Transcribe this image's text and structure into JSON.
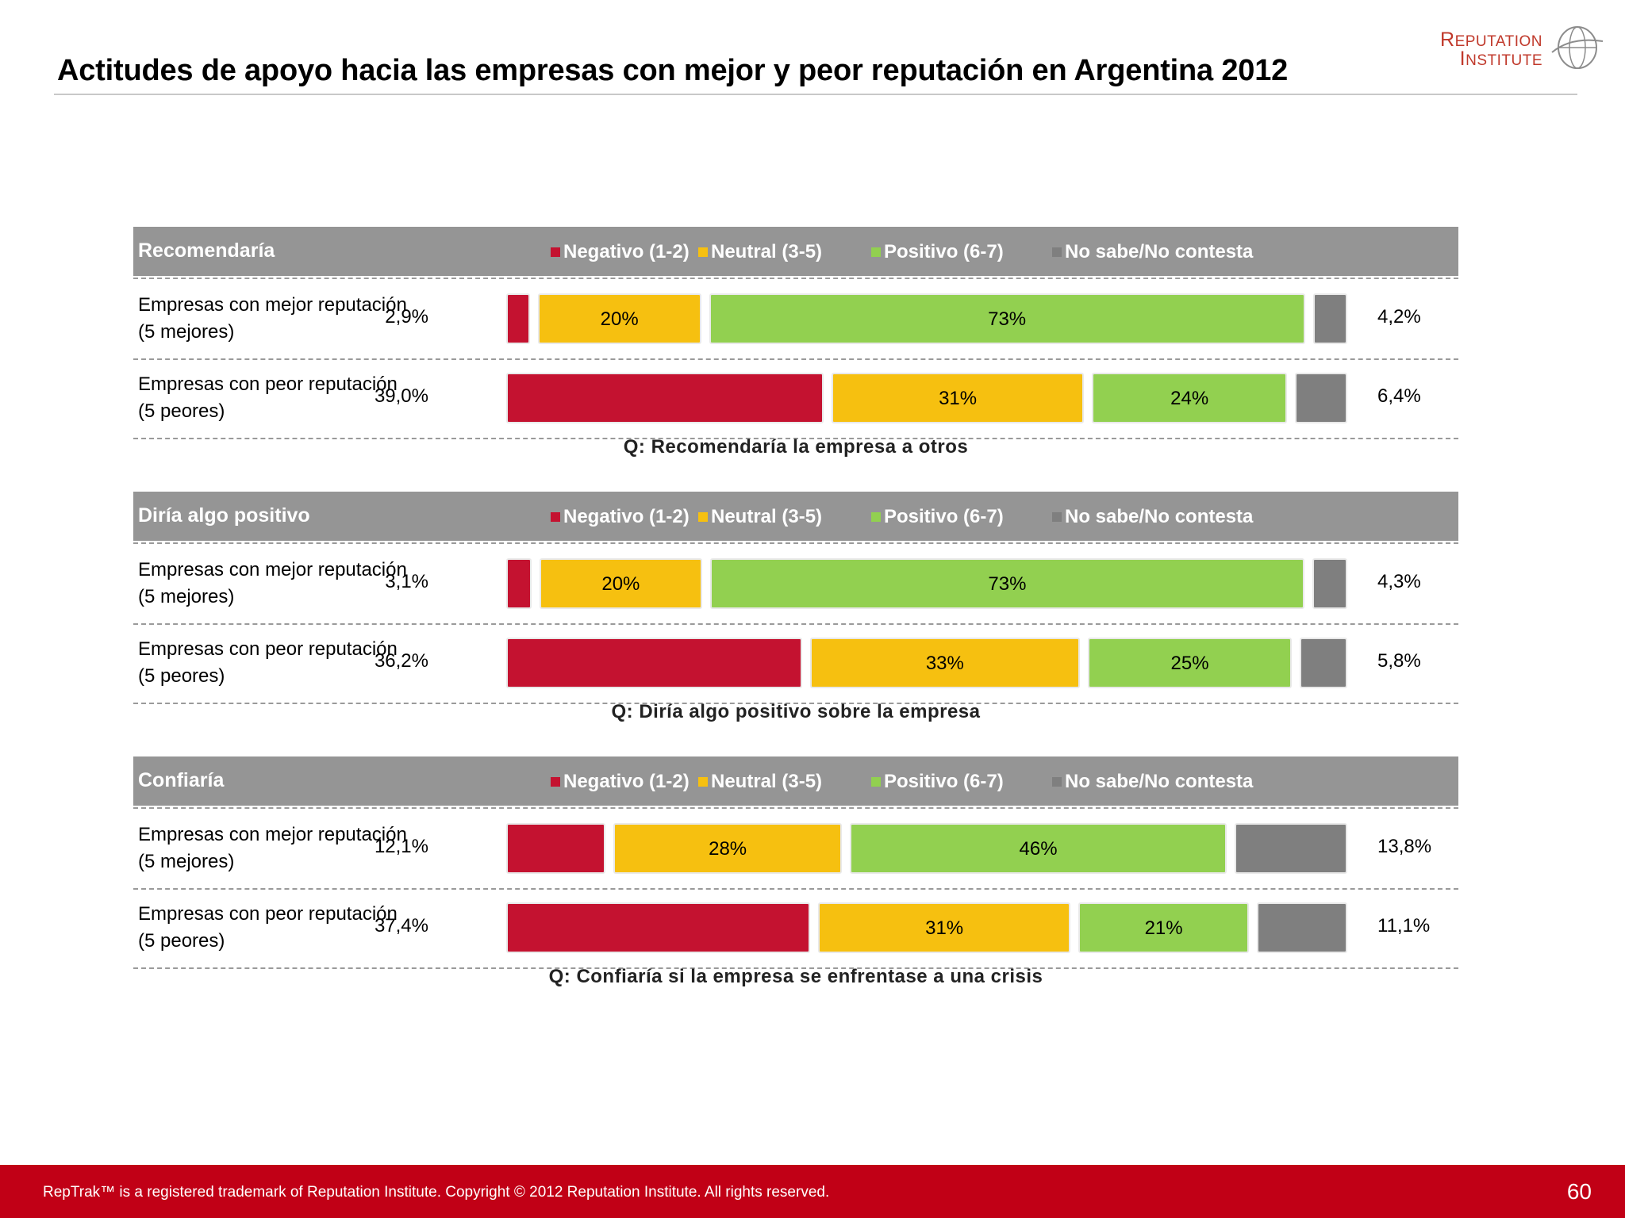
{
  "title": "Actitudes de apoyo hacia las empresas con mejor y peor reputación en Argentina 2012",
  "logo": {
    "line1": "Reputation",
    "line2": "Institute"
  },
  "colors": {
    "negative": "#c41230",
    "neutral": "#f6c010",
    "positive": "#92d050",
    "no_answer": "#7f7f7f",
    "header": "#959595",
    "footer": "#c10016"
  },
  "chart_data": [
    {
      "type": "bar",
      "title": "Recomendaría",
      "question": "Q: Recomendaría la empresa a otros",
      "legend": [
        "Negativo (1-2)",
        "Neutral (3-5)",
        "Positivo (6-7)",
        "No sabe/No contesta"
      ],
      "categories": [
        [
          "Empresas con mejor reputación",
          "(5 mejores)"
        ],
        [
          "Empresas con peor reputación",
          "(5 peores)"
        ]
      ],
      "series": [
        {
          "name": "Negativo (1-2)",
          "values": [
            2.9,
            39.0
          ],
          "labels": [
            "2,9%",
            "39,0%"
          ]
        },
        {
          "name": "Neutral (3-5)",
          "values": [
            20,
            31
          ],
          "labels": [
            "20%",
            "31%"
          ]
        },
        {
          "name": "Positivo (6-7)",
          "values": [
            73,
            24
          ],
          "labels": [
            "73%",
            "24%"
          ]
        },
        {
          "name": "No sabe/No contesta",
          "values": [
            4.2,
            6.4
          ],
          "labels": [
            "4,2%",
            "6,4%"
          ]
        }
      ]
    },
    {
      "type": "bar",
      "title": "Diría algo positivo",
      "question": "Q: Diría algo positivo sobre la empresa",
      "legend": [
        "Negativo (1-2)",
        "Neutral (3-5)",
        "Positivo (6-7)",
        "No sabe/No contesta"
      ],
      "categories": [
        [
          "Empresas con mejor reputación",
          "(5 mejores)"
        ],
        [
          "Empresas con peor reputación",
          "(5 peores)"
        ]
      ],
      "series": [
        {
          "name": "Negativo (1-2)",
          "values": [
            3.1,
            36.2
          ],
          "labels": [
            "3,1%",
            "36,2%"
          ]
        },
        {
          "name": "Neutral (3-5)",
          "values": [
            20,
            33
          ],
          "labels": [
            "20%",
            "33%"
          ]
        },
        {
          "name": "Positivo (6-7)",
          "values": [
            73,
            25
          ],
          "labels": [
            "73%",
            "25%"
          ]
        },
        {
          "name": "No sabe/No contesta",
          "values": [
            4.3,
            5.8
          ],
          "labels": [
            "4,3%",
            "5,8%"
          ]
        }
      ]
    },
    {
      "type": "bar",
      "title": "Confiaría",
      "question": "Q: Confiaría si la empresa se enfrentase a una crisis",
      "legend": [
        "Negativo (1-2)",
        "Neutral (3-5)",
        "Positivo (6-7)",
        "No sabe/No contesta"
      ],
      "categories": [
        [
          "Empresas con mejor reputación",
          "(5 mejores)"
        ],
        [
          "Empresas con peor reputación",
          "(5 peores)"
        ]
      ],
      "series": [
        {
          "name": "Negativo (1-2)",
          "values": [
            12.1,
            37.4
          ],
          "labels": [
            "12,1%",
            "37,4%"
          ]
        },
        {
          "name": "Neutral (3-5)",
          "values": [
            28,
            31
          ],
          "labels": [
            "28%",
            "31%"
          ]
        },
        {
          "name": "Positivo (6-7)",
          "values": [
            46,
            21
          ],
          "labels": [
            "46%",
            "21%"
          ]
        },
        {
          "name": "No sabe/No contesta",
          "values": [
            13.8,
            11.1
          ],
          "labels": [
            "13,8%",
            "11,1%"
          ]
        }
      ]
    }
  ],
  "footer": {
    "text": "RepTrak™ is a registered trademark of Reputation Institute. Copyright © 2012 Reputation Institute. All rights reserved.",
    "page": "60"
  }
}
